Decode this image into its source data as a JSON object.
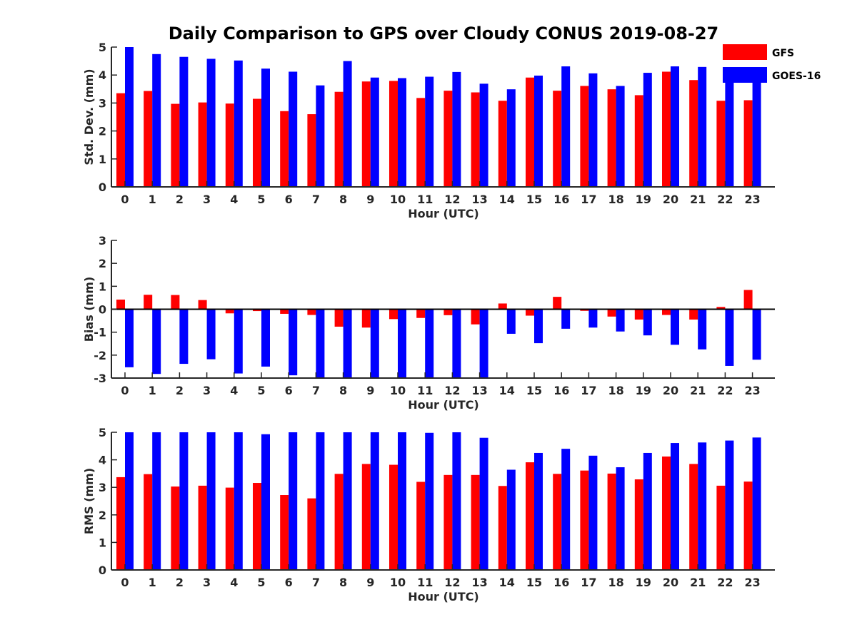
{
  "title": "Daily Comparison to GPS over Cloudy CONUS 2019-08-27",
  "legend": [
    {
      "name": "GFS",
      "color": "#ff0000"
    },
    {
      "name": "GOES-16",
      "color": "#0000ff"
    }
  ],
  "chart_data": [
    {
      "type": "bar",
      "xlabel": "Hour (UTC)",
      "ylabel": "Std. Dev. (mm)",
      "ylim": [
        0,
        5
      ],
      "yticks": [
        0,
        1,
        2,
        3,
        4,
        5
      ],
      "categories": [
        "0",
        "1",
        "2",
        "3",
        "4",
        "5",
        "6",
        "7",
        "8",
        "9",
        "10",
        "11",
        "12",
        "13",
        "14",
        "15",
        "16",
        "17",
        "18",
        "19",
        "20",
        "21",
        "22",
        "23"
      ],
      "series": [
        {
          "name": "GFS",
          "values": [
            3.35,
            3.43,
            2.97,
            3.02,
            2.98,
            3.15,
            2.71,
            2.6,
            3.4,
            3.77,
            3.79,
            3.18,
            3.44,
            3.38,
            3.08,
            3.91,
            3.44,
            3.61,
            3.49,
            3.28,
            4.12,
            3.82,
            3.08,
            3.1
          ]
        },
        {
          "name": "GOES-16",
          "values": [
            5.0,
            4.75,
            4.65,
            4.58,
            4.52,
            4.23,
            4.12,
            3.63,
            4.5,
            3.91,
            3.89,
            3.94,
            4.11,
            3.69,
            3.49,
            3.98,
            4.31,
            4.06,
            3.61,
            4.08,
            4.31,
            4.29,
            3.99,
            3.99
          ]
        }
      ]
    },
    {
      "type": "bar",
      "xlabel": "Hour (UTC)",
      "ylabel": "Bias (mm)",
      "ylim": [
        -3,
        3
      ],
      "yticks": [
        -3,
        -2,
        -1,
        0,
        1,
        2,
        3
      ],
      "categories": [
        "0",
        "1",
        "2",
        "3",
        "4",
        "5",
        "6",
        "7",
        "8",
        "9",
        "10",
        "11",
        "12",
        "13",
        "14",
        "15",
        "16",
        "17",
        "18",
        "19",
        "20",
        "21",
        "22",
        "23"
      ],
      "series": [
        {
          "name": "GFS",
          "values": [
            0.42,
            0.63,
            0.62,
            0.4,
            -0.18,
            -0.08,
            -0.2,
            -0.25,
            -0.76,
            -0.8,
            -0.43,
            -0.38,
            -0.26,
            -0.66,
            0.25,
            -0.28,
            0.54,
            -0.07,
            -0.32,
            -0.45,
            -0.25,
            -0.45,
            0.1,
            0.84
          ]
        },
        {
          "name": "GOES-16",
          "values": [
            -2.53,
            -2.82,
            -2.38,
            -2.18,
            -2.8,
            -2.5,
            -2.88,
            -3.0,
            -3.0,
            -3.0,
            -3.0,
            -3.0,
            -3.0,
            -3.0,
            -1.07,
            -1.48,
            -0.85,
            -0.8,
            -0.97,
            -1.14,
            -1.55,
            -1.75,
            -2.47,
            -2.2
          ]
        }
      ]
    },
    {
      "type": "bar",
      "xlabel": "Hour (UTC)",
      "ylabel": "RMS (mm)",
      "ylim": [
        0,
        5
      ],
      "yticks": [
        0,
        1,
        2,
        3,
        4,
        5
      ],
      "categories": [
        "0",
        "1",
        "2",
        "3",
        "4",
        "5",
        "6",
        "7",
        "8",
        "9",
        "10",
        "11",
        "12",
        "13",
        "14",
        "15",
        "16",
        "17",
        "18",
        "19",
        "20",
        "21",
        "22",
        "23"
      ],
      "series": [
        {
          "name": "GFS",
          "values": [
            3.37,
            3.48,
            3.03,
            3.06,
            2.99,
            3.16,
            2.72,
            2.6,
            3.49,
            3.85,
            3.82,
            3.2,
            3.45,
            3.45,
            3.05,
            3.91,
            3.49,
            3.61,
            3.5,
            3.29,
            4.12,
            3.85,
            3.06,
            3.21
          ]
        },
        {
          "name": "GOES-16",
          "values": [
            5.0,
            5.0,
            5.0,
            5.0,
            5.0,
            4.93,
            5.0,
            5.0,
            5.0,
            5.0,
            5.0,
            4.98,
            5.0,
            4.8,
            3.64,
            4.25,
            4.4,
            4.15,
            3.73,
            4.25,
            4.61,
            4.63,
            4.7,
            4.81
          ]
        }
      ]
    }
  ]
}
